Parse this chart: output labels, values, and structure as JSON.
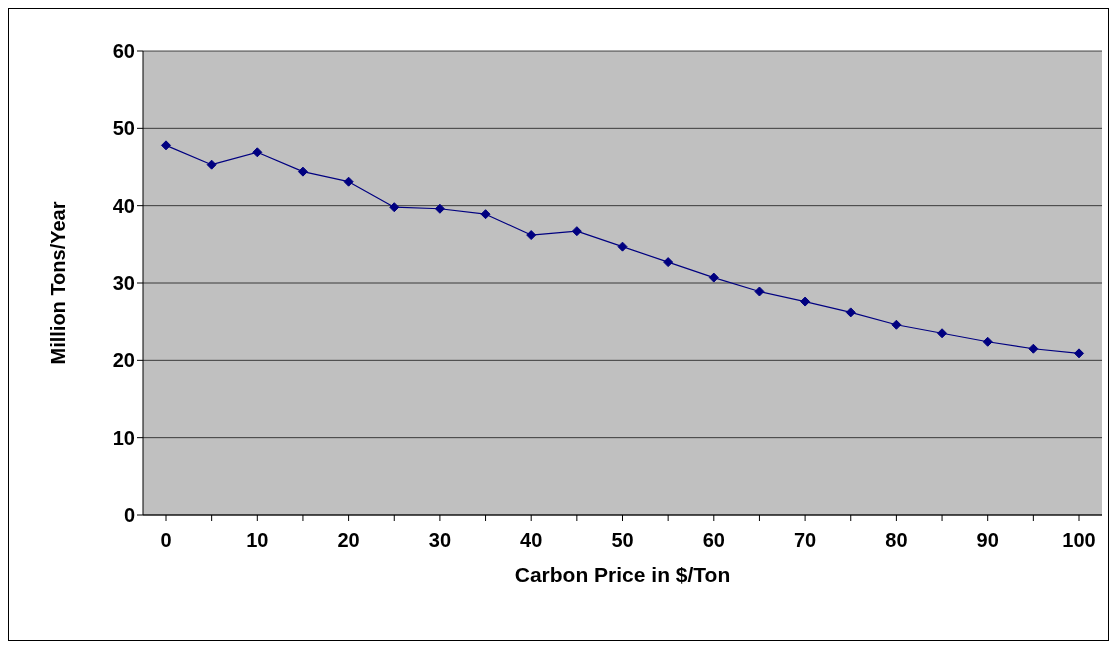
{
  "chart_data": {
    "type": "line",
    "xlabel": "Carbon Price in $/Ton",
    "ylabel": "Million Tons/Year",
    "categories": [
      "0",
      null,
      "10",
      null,
      "20",
      null,
      "30",
      null,
      "40",
      null,
      "50",
      null,
      "60",
      null,
      "70",
      null,
      "80",
      null,
      "90",
      null,
      "100"
    ],
    "series": [
      {
        "color": "#000080",
        "values": [
          47.8,
          45.3,
          46.9,
          44.4,
          43.1,
          39.8,
          39.6,
          38.9,
          36.2,
          36.7,
          34.7,
          32.7,
          30.7,
          28.9,
          27.6,
          26.2,
          24.6,
          23.5,
          22.4,
          21.5,
          20.9
        ]
      }
    ],
    "ylim": [
      0,
      60
    ],
    "yticks": [
      0,
      10,
      20,
      30,
      40,
      50,
      60
    ],
    "grid": "y",
    "marker": "diamond",
    "legend": false
  }
}
